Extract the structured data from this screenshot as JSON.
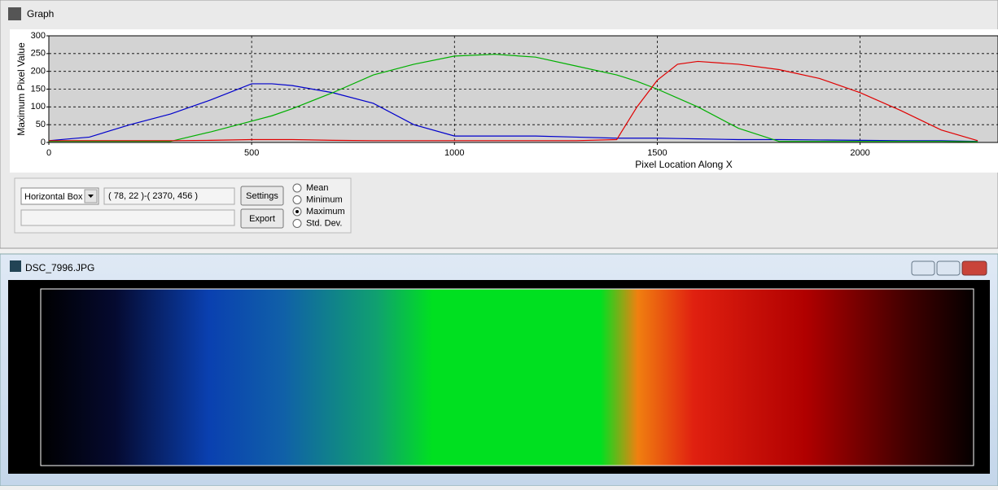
{
  "ui": {
    "graph_title": "Graph",
    "mode": "Horizontal Box",
    "region": "( 78, 22 )-( 2370, 456 )",
    "buttons": [
      "Settings",
      "Export"
    ],
    "options": [
      "Mean",
      "Minimum",
      "Maximum",
      "Std. Dev."
    ],
    "selected_option": "Maximum",
    "image_title": "DSC_7996.JPG"
  },
  "chart_data": {
    "type": "line",
    "xlabel": "Pixel Location Along X",
    "ylabel": "Maximum Pixel Value",
    "x": [
      0,
      100,
      200,
      300,
      400,
      500,
      550,
      600,
      700,
      800,
      900,
      1000,
      1100,
      1200,
      1300,
      1400,
      1450,
      1500,
      1550,
      1600,
      1700,
      1800,
      1900,
      2000,
      2100,
      2200,
      2290
    ],
    "series": [
      {
        "name": "Blue",
        "color": "#0000cc",
        "values": [
          5,
          15,
          50,
          80,
          120,
          165,
          165,
          160,
          140,
          110,
          50,
          18,
          18,
          18,
          15,
          12,
          12,
          12,
          11,
          10,
          8,
          8,
          7,
          6,
          5,
          5,
          3
        ]
      },
      {
        "name": "Green",
        "color": "#00b000",
        "values": [
          3,
          3,
          3,
          3,
          30,
          60,
          75,
          95,
          140,
          190,
          220,
          243,
          248,
          240,
          215,
          190,
          172,
          150,
          125,
          100,
          40,
          3,
          3,
          3,
          3,
          3,
          2
        ]
      },
      {
        "name": "Red",
        "color": "#e00000",
        "values": [
          5,
          5,
          5,
          5,
          6,
          8,
          8,
          8,
          6,
          5,
          5,
          5,
          5,
          5,
          5,
          8,
          100,
          175,
          220,
          228,
          220,
          205,
          180,
          140,
          90,
          35,
          5
        ]
      }
    ],
    "xlim": [
      0,
      2340
    ],
    "ylim": [
      0,
      300
    ],
    "xticks": [
      0,
      500,
      1000,
      1500,
      2000
    ],
    "yticks": [
      0,
      50,
      100,
      150,
      200,
      250,
      300
    ],
    "grid": true
  }
}
